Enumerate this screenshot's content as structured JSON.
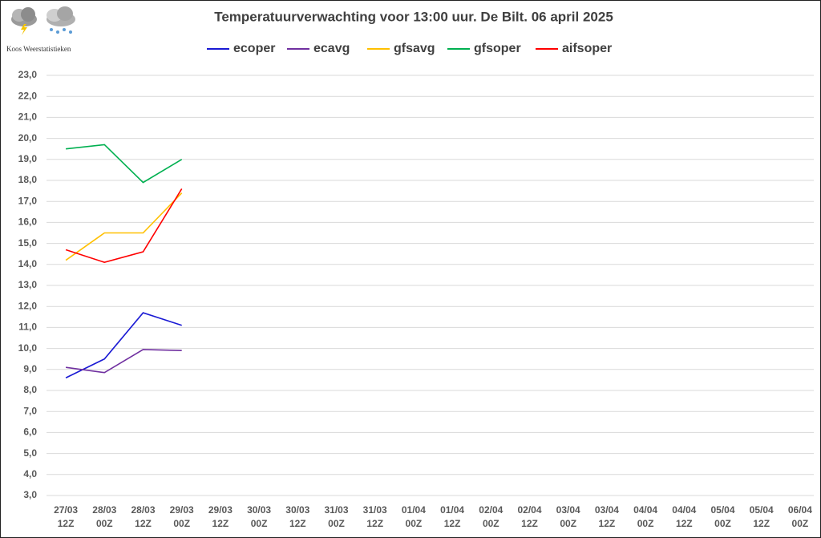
{
  "chart_data": {
    "type": "line",
    "title": "Temperatuurverwachting voor 13:00 uur. De Bilt. 06 april 2025",
    "source": "Koos Weerstatistieken",
    "categories": [
      "27/03 12Z",
      "28/03 00Z",
      "28/03 12Z",
      "29/03 00Z",
      "29/03 12Z",
      "30/03 00Z",
      "30/03 12Z",
      "31/03 00Z",
      "31/03 12Z",
      "01/04 00Z",
      "01/04 12Z",
      "02/04 00Z",
      "02/04 12Z",
      "03/04 00Z",
      "03/04 12Z",
      "04/04 00Z",
      "04/04 12Z",
      "05/04 00Z",
      "05/04 12Z",
      "06/04 00Z"
    ],
    "series": [
      {
        "name": "ecoper",
        "color": "#1a1ad4",
        "values": [
          8.6,
          9.5,
          11.7,
          11.1,
          null,
          null,
          null,
          null,
          null,
          null,
          null,
          null,
          null,
          null,
          null,
          null,
          null,
          null,
          null,
          null
        ]
      },
      {
        "name": "ecavg",
        "color": "#7030a0",
        "values": [
          9.1,
          8.85,
          9.95,
          9.9,
          null,
          null,
          null,
          null,
          null,
          null,
          null,
          null,
          null,
          null,
          null,
          null,
          null,
          null,
          null,
          null
        ]
      },
      {
        "name": "gfsavg",
        "color": "#ffc000",
        "values": [
          14.2,
          15.5,
          15.5,
          17.4,
          null,
          null,
          null,
          null,
          null,
          null,
          null,
          null,
          null,
          null,
          null,
          null,
          null,
          null,
          null,
          null
        ]
      },
      {
        "name": "gfsoper",
        "color": "#00b050",
        "values": [
          19.5,
          19.7,
          17.9,
          19.0,
          null,
          null,
          null,
          null,
          null,
          null,
          null,
          null,
          null,
          null,
          null,
          null,
          null,
          null,
          null,
          null
        ]
      },
      {
        "name": "aifsoper",
        "color": "#ff0000",
        "values": [
          14.7,
          14.1,
          14.6,
          17.6,
          null,
          null,
          null,
          null,
          null,
          null,
          null,
          null,
          null,
          null,
          null,
          null,
          null,
          null,
          null,
          null
        ]
      }
    ],
    "ylim": [
      3,
      23
    ],
    "yticks": [
      {
        "value": 3,
        "label": "3,0"
      },
      {
        "value": 4,
        "label": "4,0"
      },
      {
        "value": 5,
        "label": "5,0"
      },
      {
        "value": 6,
        "label": "6,0"
      },
      {
        "value": 7,
        "label": "7,0"
      },
      {
        "value": 8,
        "label": "8,0"
      },
      {
        "value": 9,
        "label": "9,0"
      },
      {
        "value": 10,
        "label": "10,0"
      },
      {
        "value": 11,
        "label": "11,0"
      },
      {
        "value": 12,
        "label": "12,0"
      },
      {
        "value": 13,
        "label": "13,0"
      },
      {
        "value": 14,
        "label": "14,0"
      },
      {
        "value": 15,
        "label": "15,0"
      },
      {
        "value": 16,
        "label": "16,0"
      },
      {
        "value": 17,
        "label": "17,0"
      },
      {
        "value": 18,
        "label": "18,0"
      },
      {
        "value": 19,
        "label": "19,0"
      },
      {
        "value": 20,
        "label": "20,0"
      },
      {
        "value": 21,
        "label": "21,0"
      },
      {
        "value": 22,
        "label": "22,0"
      },
      {
        "value": 23,
        "label": "23,0"
      }
    ],
    "grid": true,
    "legend": "top"
  }
}
